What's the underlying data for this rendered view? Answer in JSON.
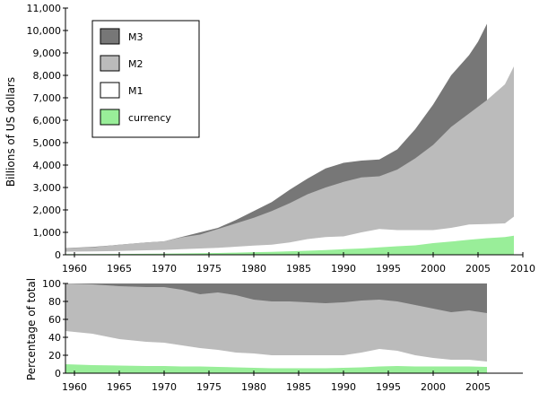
{
  "chart_data": [
    {
      "type": "area",
      "title": "",
      "xlabel": "",
      "ylabel": "Billions of US dollars",
      "xlim": [
        1959,
        2010
      ],
      "ylim": [
        0,
        11000
      ],
      "x_ticks": [
        1960,
        1965,
        1970,
        1975,
        1980,
        1985,
        1990,
        1995,
        2000,
        2005,
        2010
      ],
      "x_tick_labels": [
        "1960",
        "1965",
        "1970",
        "1975",
        "1980",
        "1985",
        "1990",
        "1995",
        "2000",
        "2005",
        "2010"
      ],
      "y_ticks": [
        0,
        1000,
        2000,
        3000,
        4000,
        5000,
        6000,
        7000,
        8000,
        9000,
        10000,
        11000
      ],
      "y_tick_labels": [
        "0",
        "1,000",
        "2,000",
        "3,000",
        "4,000",
        "5,000",
        "6,000",
        "7,000",
        "8,000",
        "9,000",
        "10,000",
        "11,000"
      ],
      "grid": false,
      "legend_position": "top-left",
      "legend": [
        "M3",
        "M2",
        "M1",
        "currency"
      ],
      "series": [
        {
          "name": "M3",
          "color": "#777777",
          "x": [
            1959,
            1962,
            1965,
            1968,
            1970,
            1972,
            1974,
            1976,
            1978,
            1980,
            1982,
            1984,
            1986,
            1988,
            1990,
            1992,
            1994,
            1996,
            1998,
            2000,
            2002,
            2004,
            2005,
            2006
          ],
          "values": [
            300,
            350,
            450,
            550,
            600,
            800,
            1000,
            1200,
            1550,
            1950,
            2350,
            2900,
            3400,
            3850,
            4100,
            4200,
            4250,
            4700,
            5600,
            6700,
            8000,
            8900,
            9500,
            10300
          ]
        },
        {
          "name": "M2",
          "color": "#bbbbbb",
          "x": [
            1959,
            1962,
            1965,
            1968,
            1970,
            1972,
            1974,
            1976,
            1978,
            1980,
            1982,
            1984,
            1986,
            1988,
            1990,
            1992,
            1994,
            1996,
            1998,
            2000,
            2002,
            2004,
            2006,
            2008,
            2009
          ],
          "values": [
            300,
            330,
            450,
            550,
            600,
            780,
            900,
            1150,
            1400,
            1650,
            1950,
            2300,
            2700,
            3000,
            3250,
            3450,
            3500,
            3800,
            4300,
            4900,
            5700,
            6300,
            6900,
            7600,
            8400
          ]
        },
        {
          "name": "M1",
          "color": "#ffffff",
          "x": [
            1959,
            1962,
            1965,
            1968,
            1970,
            1972,
            1974,
            1976,
            1978,
            1980,
            1982,
            1984,
            1986,
            1988,
            1990,
            1992,
            1994,
            1996,
            1998,
            2000,
            2002,
            2004,
            2006,
            2008,
            2009
          ],
          "values": [
            140,
            150,
            170,
            200,
            215,
            250,
            280,
            310,
            360,
            410,
            450,
            550,
            700,
            790,
            820,
            1000,
            1150,
            1100,
            1100,
            1100,
            1200,
            1350,
            1370,
            1400,
            1700
          ]
        },
        {
          "name": "currency",
          "color": "#99ee99",
          "x": [
            1959,
            1962,
            1965,
            1968,
            1970,
            1972,
            1974,
            1976,
            1978,
            1980,
            1982,
            1984,
            1986,
            1988,
            1990,
            1992,
            1994,
            1996,
            1998,
            2000,
            2002,
            2004,
            2006,
            2008,
            2009
          ],
          "values": [
            30,
            32,
            38,
            45,
            50,
            60,
            70,
            80,
            95,
            115,
            130,
            155,
            180,
            210,
            250,
            280,
            330,
            380,
            420,
            520,
            590,
            670,
            740,
            790,
            850
          ]
        }
      ]
    },
    {
      "type": "area",
      "title": "",
      "xlabel": "",
      "ylabel": "Percentage of total",
      "xlim": [
        1959,
        2010
      ],
      "ylim": [
        0,
        100
      ],
      "x_ticks": [
        1960,
        1965,
        1970,
        1975,
        1980,
        1985,
        1990,
        1995,
        2000,
        2005
      ],
      "x_tick_labels": [
        "1960",
        "1965",
        "1970",
        "1975",
        "1980",
        "1985",
        "1990",
        "1995",
        "2000",
        "2005"
      ],
      "y_ticks": [
        0,
        20,
        40,
        60,
        80,
        100
      ],
      "y_tick_labels": [
        "0",
        "20",
        "40",
        "60",
        "80",
        "100"
      ],
      "grid": false,
      "series": [
        {
          "name": "M3",
          "color": "#777777",
          "x": [
            1959,
            2006
          ],
          "values": [
            100,
            100
          ]
        },
        {
          "name": "M2",
          "color": "#bbbbbb",
          "x": [
            1959,
            1962,
            1965,
            1968,
            1970,
            1972,
            1974,
            1976,
            1978,
            1980,
            1982,
            1984,
            1986,
            1988,
            1990,
            1992,
            1994,
            1996,
            1998,
            2000,
            2002,
            2004,
            2006
          ],
          "values": [
            100,
            99,
            97,
            96,
            96,
            93,
            88,
            90,
            87,
            82,
            80,
            80,
            79,
            78,
            79,
            81,
            82,
            80,
            76,
            72,
            68,
            70,
            67
          ]
        },
        {
          "name": "M1",
          "color": "#ffffff",
          "x": [
            1959,
            1962,
            1965,
            1968,
            1970,
            1972,
            1974,
            1976,
            1978,
            1980,
            1982,
            1984,
            1986,
            1988,
            1990,
            1992,
            1994,
            1996,
            1998,
            2000,
            2002,
            2004,
            2006
          ],
          "values": [
            47,
            44,
            38,
            35,
            34,
            31,
            28,
            26,
            23,
            22,
            20,
            20,
            20,
            20,
            20,
            23,
            27,
            25,
            20,
            17,
            15,
            15,
            13
          ]
        },
        {
          "name": "currency",
          "color": "#99ee99",
          "x": [
            1959,
            1962,
            1965,
            1968,
            1970,
            1972,
            1974,
            1976,
            1978,
            1980,
            1982,
            1984,
            1986,
            1988,
            1990,
            1992,
            1994,
            1996,
            1998,
            2000,
            2002,
            2004,
            2006
          ],
          "values": [
            10,
            9,
            8.5,
            8,
            8,
            7.5,
            7.5,
            7,
            6.5,
            6,
            5.5,
            5.5,
            5.5,
            5.5,
            6,
            6.5,
            7.5,
            8,
            7.5,
            7.5,
            7.5,
            7.5,
            7
          ]
        }
      ]
    }
  ]
}
